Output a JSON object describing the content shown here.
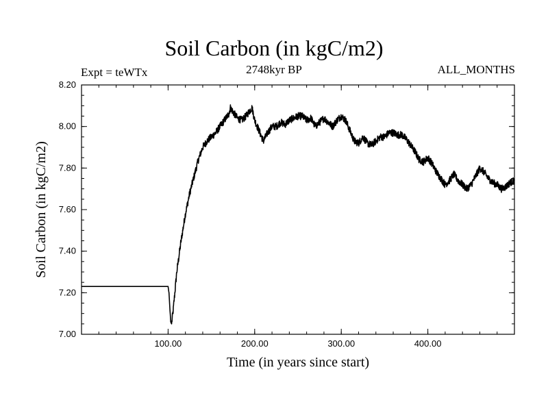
{
  "chart_data": {
    "type": "line",
    "title": "Soil Carbon (in kgC/m2)",
    "subtitle": "2748kyr BP",
    "left_annotation": "Expt = teWTx",
    "right_annotation": "ALL_MONTHS",
    "xlabel": "Time (in years since start)",
    "ylabel": "Soil Carbon (in kgC/m2)",
    "xlim": [
      0,
      500
    ],
    "ylim": [
      7.0,
      8.2
    ],
    "x_ticks": [
      100,
      200,
      300,
      400
    ],
    "x_tick_labels": [
      "100.00",
      "200.00",
      "300.00",
      "400.00"
    ],
    "y_ticks": [
      7.0,
      7.2,
      7.4,
      7.6,
      7.8,
      8.0,
      8.2
    ],
    "y_tick_labels": [
      "7.00",
      "7.20",
      "7.40",
      "7.60",
      "7.80",
      "8.00",
      "8.20"
    ],
    "series": [
      {
        "name": "Soil Carbon",
        "color": "#000000",
        "x": [
          0,
          100,
          101,
          102,
          103,
          104,
          106,
          110,
          115,
          120,
          125,
          130,
          135,
          140,
          145,
          150,
          155,
          160,
          165,
          170,
          172,
          175,
          180,
          185,
          190,
          195,
          197,
          200,
          205,
          210,
          215,
          220,
          225,
          230,
          235,
          240,
          245,
          250,
          255,
          260,
          265,
          270,
          275,
          280,
          285,
          290,
          295,
          300,
          305,
          310,
          315,
          320,
          325,
          330,
          335,
          340,
          345,
          350,
          355,
          360,
          365,
          370,
          375,
          380,
          385,
          390,
          395,
          400,
          405,
          410,
          415,
          420,
          425,
          430,
          435,
          440,
          445,
          450,
          455,
          460,
          465,
          470,
          475,
          480,
          485,
          490,
          495,
          500
        ],
        "y": [
          7.23,
          7.23,
          7.2,
          7.13,
          7.06,
          7.05,
          7.12,
          7.3,
          7.45,
          7.58,
          7.68,
          7.76,
          7.84,
          7.9,
          7.93,
          7.95,
          7.97,
          8.0,
          8.03,
          8.06,
          8.09,
          8.07,
          8.04,
          8.03,
          8.05,
          8.08,
          8.09,
          8.03,
          7.98,
          7.93,
          7.97,
          8.0,
          8.0,
          8.02,
          8.01,
          8.03,
          8.04,
          8.05,
          8.05,
          8.03,
          8.04,
          8.0,
          8.02,
          8.04,
          8.02,
          8.0,
          8.03,
          8.05,
          8.03,
          7.98,
          7.93,
          7.92,
          7.95,
          7.92,
          7.91,
          7.93,
          7.95,
          7.95,
          7.97,
          7.97,
          7.96,
          7.96,
          7.94,
          7.91,
          7.88,
          7.84,
          7.83,
          7.85,
          7.82,
          7.78,
          7.75,
          7.72,
          7.74,
          7.77,
          7.74,
          7.72,
          7.7,
          7.72,
          7.76,
          7.8,
          7.78,
          7.75,
          7.73,
          7.72,
          7.7,
          7.71,
          7.73,
          7.74
        ]
      }
    ]
  }
}
